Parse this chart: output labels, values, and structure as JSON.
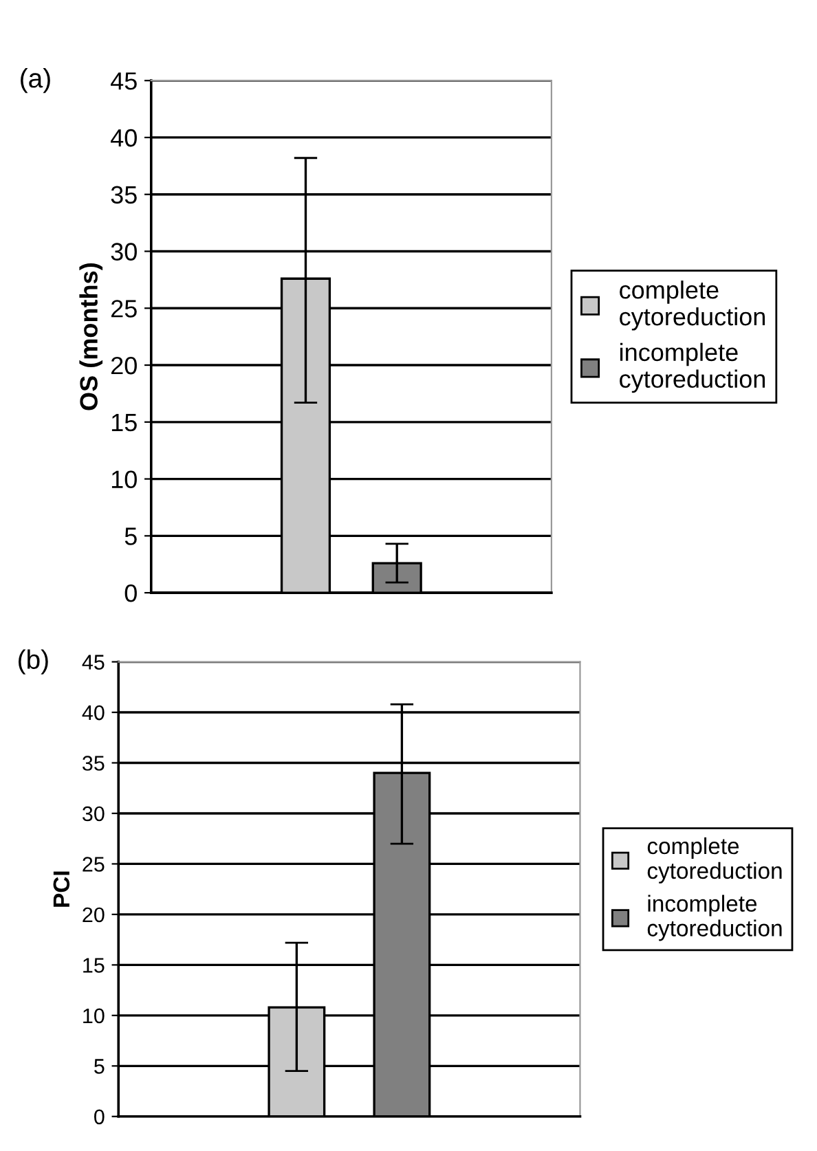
{
  "chart_data": [
    {
      "type": "bar",
      "ylabel": "OS (months)",
      "annotations": [
        "(a)"
      ],
      "categories": [
        null
      ],
      "series": [
        {
          "name": "complete cytoreduction",
          "color": "#c8c8c8",
          "values": [
            27.6
          ],
          "errors": [
            [
              16.7,
              38.2
            ]
          ]
        },
        {
          "name": "incomplete cytoreduction",
          "color": "#808080",
          "values": [
            2.6
          ],
          "errors": [
            [
              0.9,
              4.3
            ]
          ]
        }
      ],
      "ylim": [
        0,
        45
      ],
      "yticks": [
        0,
        5,
        10,
        15,
        20,
        25,
        30,
        35,
        40,
        45
      ],
      "grid": "y",
      "legend": "right"
    },
    {
      "type": "bar",
      "ylabel": "PCI",
      "annotations": [
        "(b)"
      ],
      "categories": [
        null
      ],
      "series": [
        {
          "name": "complete cytoreduction",
          "color": "#c8c8c8",
          "values": [
            10.8
          ],
          "errors": [
            [
              4.5,
              17.2
            ]
          ]
        },
        {
          "name": "incomplete cytoreduction",
          "color": "#808080",
          "values": [
            34.0
          ],
          "errors": [
            [
              27.0,
              40.8
            ]
          ]
        }
      ],
      "ylim": [
        0,
        45
      ],
      "yticks": [
        0,
        5,
        10,
        15,
        20,
        25,
        30,
        35,
        40,
        45
      ],
      "grid": "y",
      "legend": "right"
    }
  ]
}
